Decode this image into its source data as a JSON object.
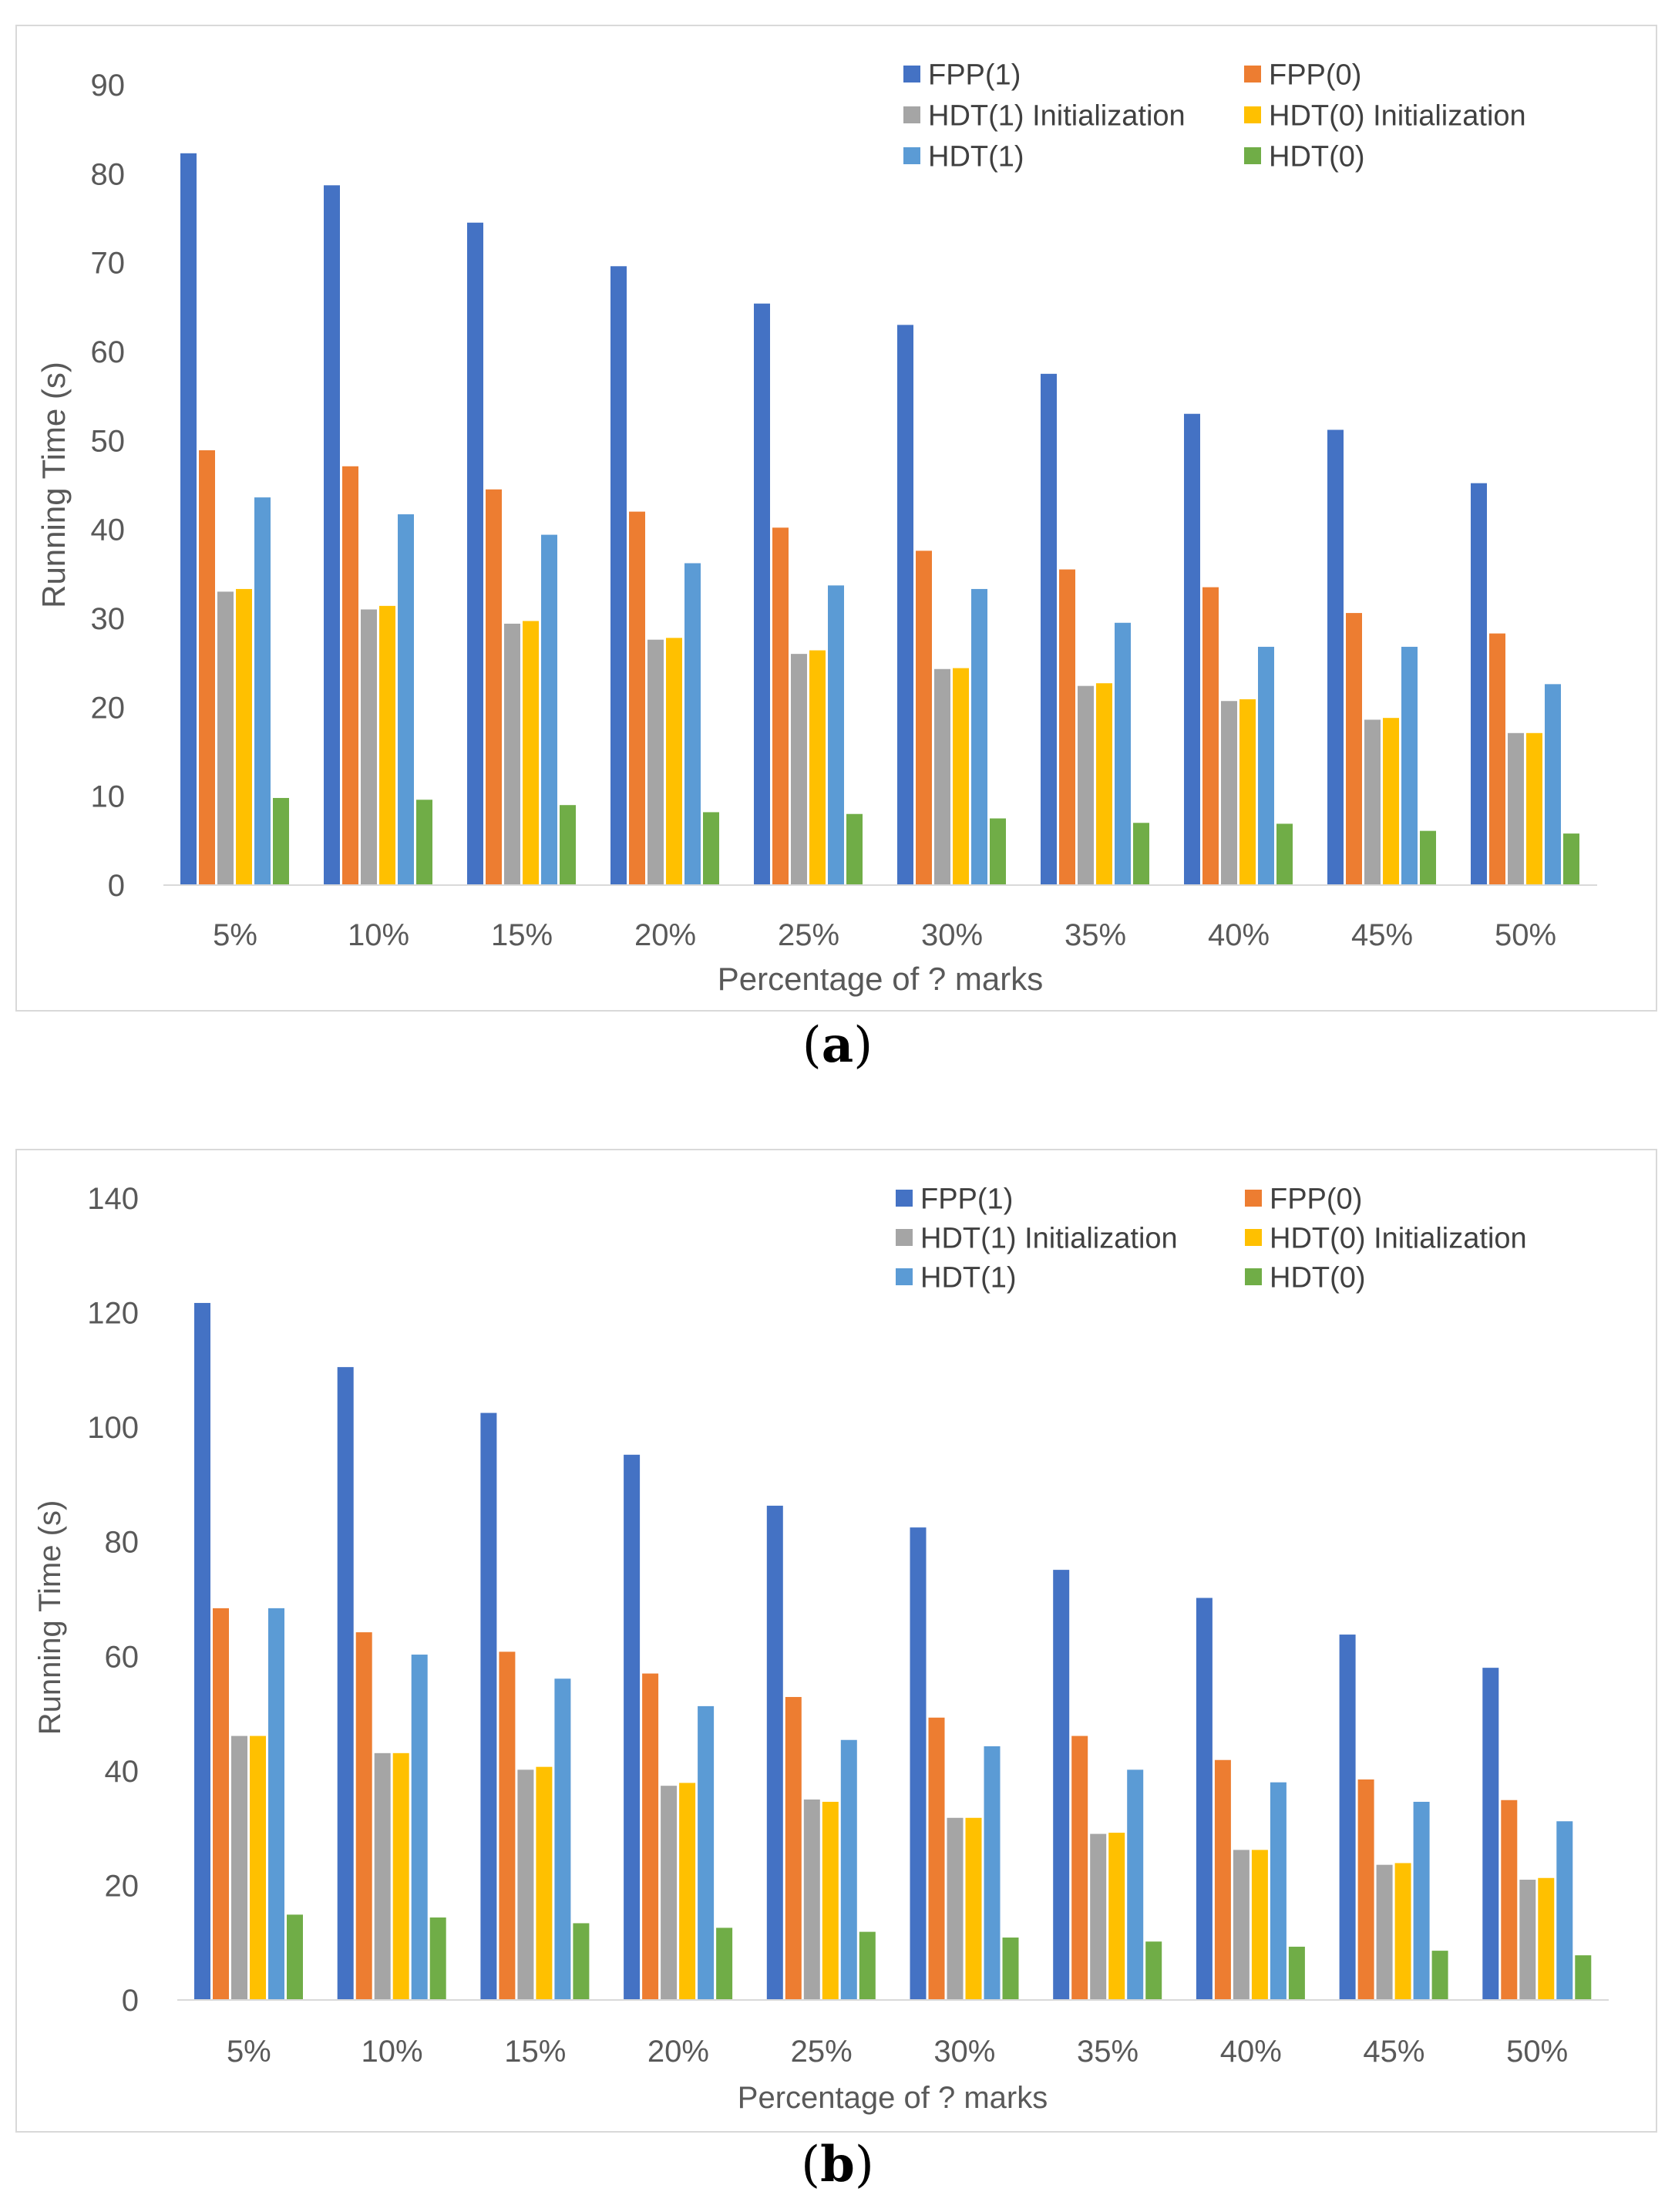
{
  "chart_data": [
    {
      "type": "bar",
      "panel_label": "a",
      "xlabel": "Percentage of ? marks",
      "ylabel": "Running Time (s)",
      "ylim": [
        0,
        90
      ],
      "yticks": [
        0,
        10,
        20,
        30,
        40,
        50,
        60,
        70,
        80,
        90
      ],
      "grid": false,
      "legend_position": "top-right",
      "categories": [
        "5%",
        "10%",
        "15%",
        "20%",
        "25%",
        "30%",
        "35%",
        "40%",
        "45%",
        "50%"
      ],
      "series": [
        {
          "name": "FPP(1)",
          "color": "#4472c4",
          "values": [
            82.3,
            78.7,
            74.5,
            69.6,
            65.4,
            63.0,
            57.5,
            53.0,
            51.2,
            45.2
          ]
        },
        {
          "name": "FPP(0)",
          "color": "#ed7d31",
          "values": [
            48.9,
            47.1,
            44.5,
            42.0,
            40.2,
            37.6,
            35.5,
            33.5,
            30.6,
            28.3
          ]
        },
        {
          "name": "HDT(1) Initialization",
          "color": "#a5a5a5",
          "values": [
            33.0,
            31.0,
            29.4,
            27.6,
            26.0,
            24.3,
            22.4,
            20.7,
            18.6,
            17.1
          ]
        },
        {
          "name": "HDT(0) Initialization",
          "color": "#ffc000",
          "values": [
            33.3,
            31.4,
            29.7,
            27.8,
            26.4,
            24.4,
            22.7,
            20.9,
            18.8,
            17.1
          ]
        },
        {
          "name": "HDT(1)",
          "color": "#5b9bd5",
          "values": [
            43.6,
            41.7,
            39.4,
            36.2,
            33.7,
            33.3,
            29.5,
            26.8,
            26.8,
            22.6
          ]
        },
        {
          "name": "HDT(0)",
          "color": "#70ad47",
          "values": [
            9.8,
            9.6,
            9.0,
            8.2,
            8.0,
            7.5,
            7.0,
            6.9,
            6.1,
            5.8
          ]
        }
      ]
    },
    {
      "type": "bar",
      "panel_label": "b",
      "xlabel": "Percentage of ? marks",
      "ylabel": "Running Time (s)",
      "ylim": [
        0,
        140
      ],
      "yticks": [
        0,
        20,
        40,
        60,
        80,
        100,
        120,
        140
      ],
      "grid": false,
      "legend_position": "top-right",
      "categories": [
        "5%",
        "10%",
        "15%",
        "20%",
        "25%",
        "30%",
        "35%",
        "40%",
        "45%",
        "50%"
      ],
      "series": [
        {
          "name": "FPP(1)",
          "color": "#4472c4",
          "values": [
            121.7,
            110.5,
            102.5,
            95.2,
            86.3,
            82.5,
            75.1,
            70.2,
            63.8,
            58.0
          ]
        },
        {
          "name": "FPP(0)",
          "color": "#ed7d31",
          "values": [
            68.4,
            64.2,
            60.8,
            57.0,
            52.9,
            49.3,
            46.1,
            41.9,
            38.5,
            34.9
          ]
        },
        {
          "name": "HDT(1) Initialization",
          "color": "#a5a5a5",
          "values": [
            46.1,
            43.1,
            40.2,
            37.4,
            35.0,
            31.8,
            29.0,
            26.2,
            23.6,
            21.0
          ]
        },
        {
          "name": "HDT(0) Initialization",
          "color": "#ffc000",
          "values": [
            46.1,
            43.1,
            40.7,
            37.9,
            34.6,
            31.8,
            29.2,
            26.2,
            23.9,
            21.3
          ]
        },
        {
          "name": "HDT(1)",
          "color": "#5b9bd5",
          "values": [
            68.4,
            60.3,
            56.1,
            51.3,
            45.4,
            44.3,
            40.2,
            38.0,
            34.6,
            31.2
          ]
        },
        {
          "name": "HDT(0)",
          "color": "#70ad47",
          "values": [
            14.9,
            14.4,
            13.4,
            12.6,
            11.9,
            10.9,
            10.2,
            9.3,
            8.6,
            7.8
          ]
        }
      ]
    }
  ]
}
